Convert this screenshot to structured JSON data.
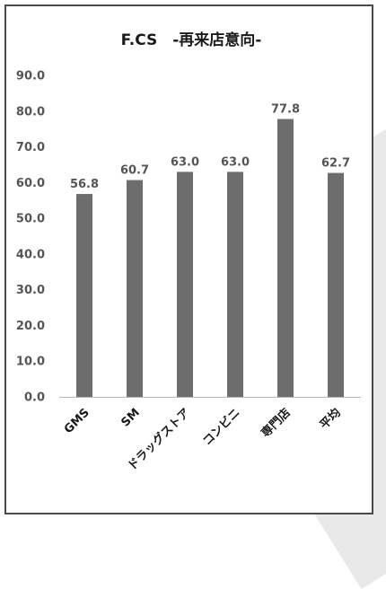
{
  "chart_data": {
    "type": "bar",
    "title": "F.CS　-再来店意向-",
    "categories": [
      "GMS",
      "SM",
      "ドラッグストア",
      "コンビニ",
      "専門店",
      "平均"
    ],
    "values": [
      56.8,
      60.7,
      63.0,
      63.0,
      77.8,
      62.7
    ],
    "value_labels": [
      "56.8",
      "60.7",
      "63.0",
      "63.0",
      "77.8",
      "62.7"
    ],
    "ylim": [
      0,
      90
    ],
    "y_ticks": [
      "0.0",
      "10.0",
      "20.0",
      "30.0",
      "40.0",
      "50.0",
      "60.0",
      "70.0",
      "80.0",
      "90.0"
    ],
    "grid": false,
    "bar_color": "#6d6d6d"
  }
}
